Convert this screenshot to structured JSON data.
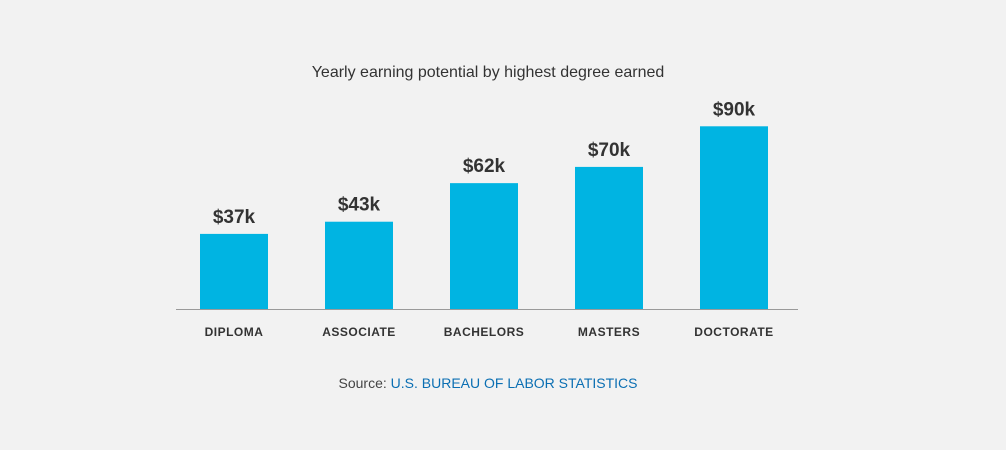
{
  "title": "Yearly earning potential by highest degree earned",
  "source": {
    "prefix": "Source: ",
    "link_text": "U.S. BUREAU OF LABOR STATISTICS"
  },
  "colors": {
    "bar": "#00b4e2",
    "axis": "#9a9a9a",
    "label": "#333333",
    "link": "#0b6fb3",
    "background": "#f2f2f2"
  },
  "chart_data": {
    "type": "bar",
    "title": "Yearly earning potential by highest degree earned",
    "categories": [
      "DIPLOMA",
      "ASSOCIATE",
      "BACHELORS",
      "MASTERS",
      "DOCTORATE"
    ],
    "values": [
      37,
      43,
      62,
      70,
      90
    ],
    "data_labels": [
      "$37k",
      "$43k",
      "$62k",
      "$70k",
      "$90k"
    ],
    "unit": "$k",
    "ylim": [
      0,
      100
    ],
    "grid": false,
    "legend": "none"
  }
}
